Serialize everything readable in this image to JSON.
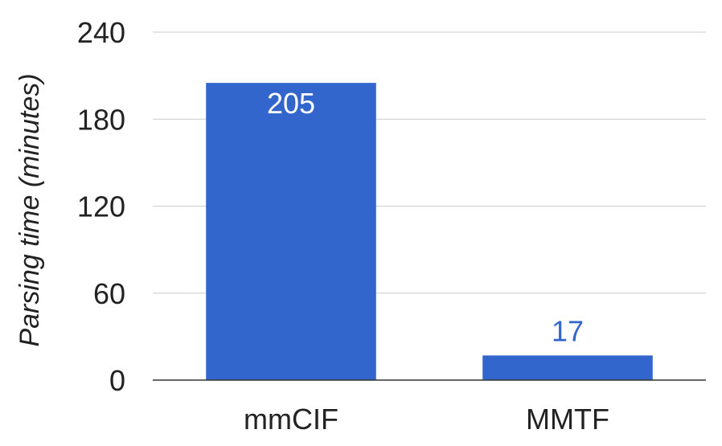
{
  "chart_data": {
    "type": "bar",
    "title": "",
    "xlabel": "",
    "ylabel": "Parsing time (minutes)",
    "categories": [
      "mmCIF",
      "MMTF"
    ],
    "values": [
      205,
      17
    ],
    "data_labels": [
      "205",
      "17"
    ],
    "ylim": [
      0,
      240
    ],
    "yticks": [
      0,
      60,
      120,
      180,
      240
    ],
    "grid": true,
    "legend": "none",
    "colors": {
      "bar": "#3366cc",
      "label_inside": "#ffffff",
      "label_outside": "#3366cc"
    }
  }
}
